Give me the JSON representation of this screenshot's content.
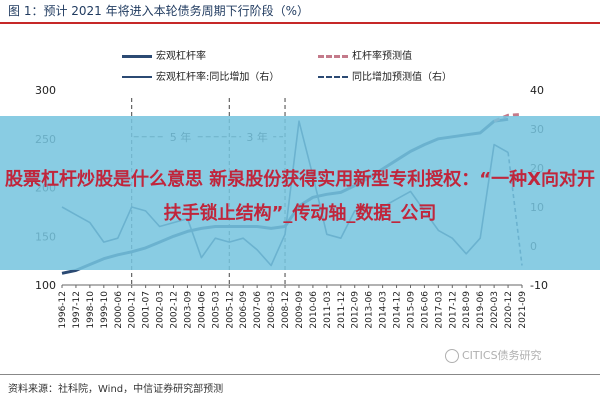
{
  "figure_title": "图 1：预计 2021 年将进入本轮债务周期下行阶段（%）",
  "overlay_text": "股票杠杆炒股是什么意思 新泉股份获得实用新型专利授权：“一种X向对开扶手锁止结构”_传动轴_数据_公司",
  "source_note": "资料来源：社科院，Wind，中信证券研究部预测",
  "watermark": "CITICS债务研究",
  "colors": {
    "leverage": "#2b4a73",
    "forecast": "#c47a8a",
    "growth": "#2b4a73",
    "growth_forecast": "#2b4a73",
    "title_rule": "#c62828"
  },
  "chart_data": {
    "type": "line",
    "x_tick_labels": [
      "1996-12",
      "1997-12",
      "1998-10",
      "1999-10",
      "2000-06",
      "2000-12",
      "2001-07",
      "2002-03",
      "2002-12",
      "2003-09",
      "2004-06",
      "2005-03",
      "2005-12",
      "2006-09",
      "2007-06",
      "2008-03",
      "2008-12",
      "2009-09",
      "2010-06",
      "2011-03",
      "2011-12",
      "2012-09",
      "2013-06",
      "2014-03",
      "2014-12",
      "2015-09",
      "2016-06",
      "2017-03",
      "2017-12",
      "2018-09",
      "2019-06",
      "2020-03",
      "2020-12",
      "2021-09"
    ],
    "y_left": {
      "min": 100,
      "max": 300,
      "ticks": [
        100,
        150,
        200,
        250,
        300
      ]
    },
    "y_right": {
      "min": -10,
      "max": 40,
      "ticks": [
        -10,
        0,
        10,
        20,
        30,
        40
      ]
    },
    "legend": [
      {
        "name": "宏观杠杆率",
        "style": "solid",
        "axis": "left"
      },
      {
        "name": "杠杆率预测值",
        "style": "dashed",
        "axis": "left"
      },
      {
        "name": "宏观杠杆率:同比增加（右）",
        "style": "solid",
        "axis": "right"
      },
      {
        "name": "同比增加预测值（右）",
        "style": "dashed",
        "axis": "right"
      }
    ],
    "annotations": [
      {
        "text": "5 年",
        "from": "2000-12",
        "to": "2005-12",
        "axis": "left",
        "y": 252
      },
      {
        "text": "3 年",
        "from": "2005-12",
        "to": "2008-12",
        "axis": "left",
        "y": 252
      }
    ],
    "cycle_markers": [
      "2000-12",
      "2005-12",
      "2008-12"
    ],
    "series": [
      {
        "name": "宏观杠杆率",
        "axis": "left",
        "style": "solid",
        "x": [
          "1996-12",
          "1997-12",
          "1998-10",
          "1999-10",
          "2000-06",
          "2000-12",
          "2001-07",
          "2002-03",
          "2002-12",
          "2003-09",
          "2004-06",
          "2005-03",
          "2005-12",
          "2006-09",
          "2007-06",
          "2008-03",
          "2008-12",
          "2009-09",
          "2010-06",
          "2011-03",
          "2011-12",
          "2012-09",
          "2013-06",
          "2014-03",
          "2014-12",
          "2015-09",
          "2016-06",
          "2017-03",
          "2017-12",
          "2018-09",
          "2019-06",
          "2020-03",
          "2020-12"
        ],
        "y": [
          112,
          115,
          121,
          127,
          131,
          134,
          138,
          144,
          150,
          155,
          158,
          160,
          160,
          160,
          160,
          158,
          160,
          181,
          190,
          193,
          195,
          202,
          210,
          219,
          228,
          237,
          244,
          250,
          252,
          254,
          256,
          268,
          270
        ]
      },
      {
        "name": "杠杆率预测值",
        "axis": "left",
        "style": "dashed",
        "x": [
          "2020-03",
          "2020-12",
          "2021-09"
        ],
        "y": [
          268,
          274,
          275
        ]
      },
      {
        "name": "宏观杠杆率:同比增加（右）",
        "axis": "right",
        "style": "solid",
        "x": [
          "1996-12",
          "1997-12",
          "1998-10",
          "1999-10",
          "2000-06",
          "2000-12",
          "2001-07",
          "2002-03",
          "2002-12",
          "2003-09",
          "2004-06",
          "2005-03",
          "2005-12",
          "2006-09",
          "2007-06",
          "2008-03",
          "2008-12",
          "2009-09",
          "2010-06",
          "2011-03",
          "2011-12",
          "2012-09",
          "2013-06",
          "2014-03",
          "2014-12",
          "2015-09",
          "2016-06",
          "2017-03",
          "2017-12",
          "2018-09",
          "2019-06",
          "2020-03",
          "2020-12"
        ],
        "y": [
          10,
          8,
          6,
          1,
          2,
          10,
          9,
          5,
          6,
          7,
          -3,
          2,
          1,
          2,
          -1,
          -5,
          3,
          32,
          18,
          3,
          2,
          9,
          10,
          10,
          12,
          14,
          9,
          4,
          2,
          -2,
          2,
          26,
          24
        ]
      },
      {
        "name": "同比增加预测值（右）",
        "axis": "right",
        "style": "dashed",
        "x": [
          "2020-12",
          "2021-09"
        ],
        "y": [
          24,
          -5
        ]
      }
    ]
  }
}
